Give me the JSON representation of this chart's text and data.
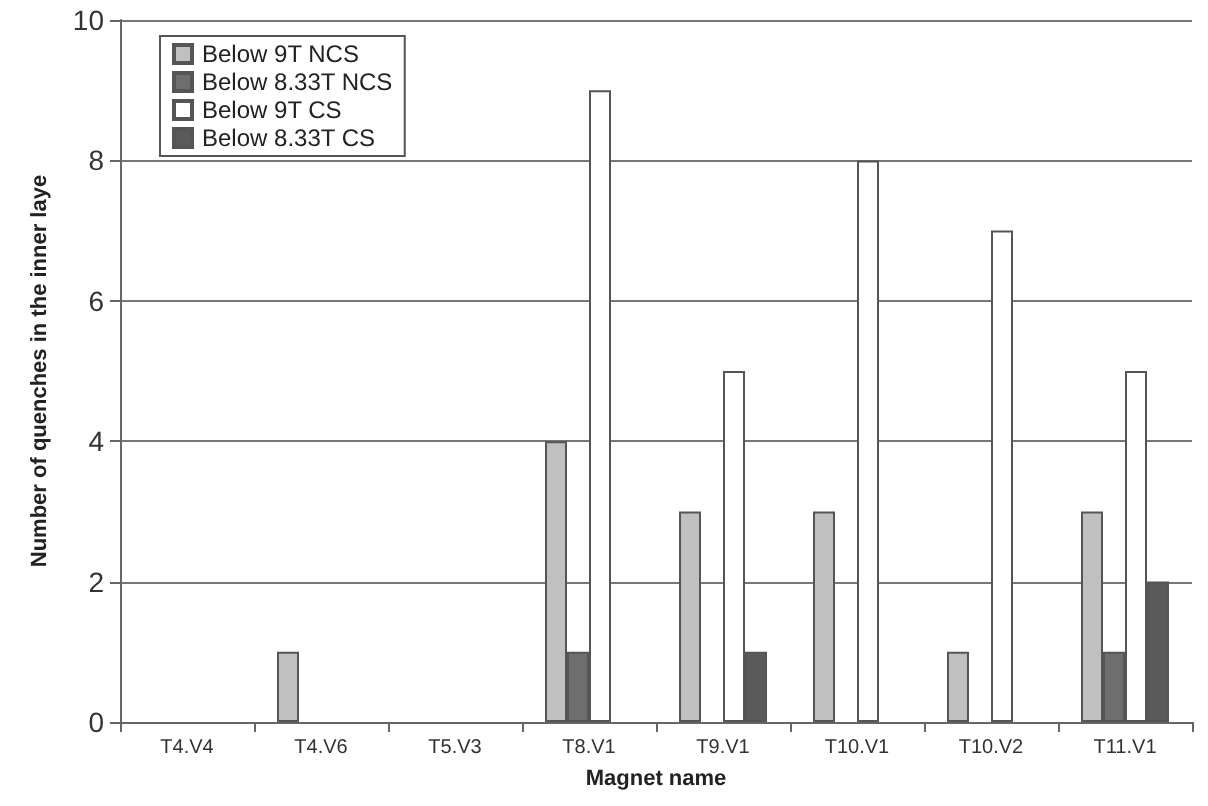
{
  "chart_data": {
    "type": "bar",
    "xlabel": "Magnet name",
    "ylabel": "Number of quenches in the inner laye",
    "categories": [
      "T4.V4",
      "T4.V6",
      "T5.V3",
      "T8.V1",
      "T9.V1",
      "T10.V1",
      "T10.V2",
      "T11.V1"
    ],
    "series": [
      {
        "name": "Below 9T NCS",
        "color": "#c0c0c0",
        "values": [
          0,
          1,
          0,
          4,
          3,
          3,
          1,
          3
        ]
      },
      {
        "name": "Below 8.33T NCS",
        "color": "#6e6e6e",
        "values": [
          0,
          0,
          0,
          1,
          0,
          0,
          0,
          1
        ]
      },
      {
        "name": "Below 9T CS",
        "color": "#ffffff",
        "values": [
          0,
          0,
          0,
          9,
          5,
          8,
          7,
          5
        ]
      },
      {
        "name": "Below 8.33T CS",
        "color": "#5a5a5a",
        "values": [
          0,
          0,
          0,
          0,
          1,
          0,
          0,
          2
        ]
      }
    ],
    "ylim": [
      0,
      10
    ],
    "yticks": [
      0,
      2,
      4,
      6,
      8,
      10
    ],
    "grid": "y",
    "legend": "top left"
  }
}
